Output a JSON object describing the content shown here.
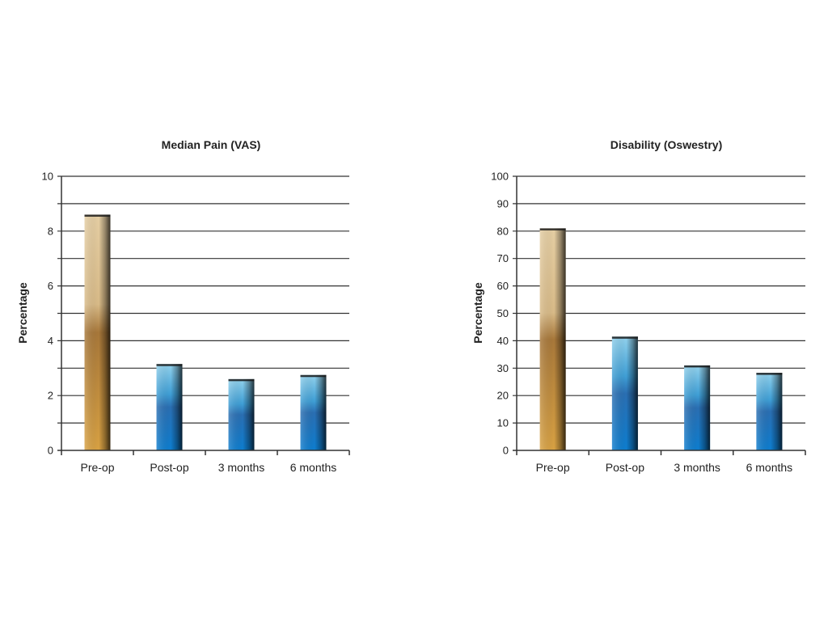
{
  "chart_data": [
    {
      "type": "bar",
      "title": "Median Pain (VAS)",
      "ylabel": "Percentage",
      "categories": [
        "Pre-op",
        "Post-op",
        "3 months",
        "6 months"
      ],
      "values": [
        8.6,
        3.15,
        2.6,
        2.75
      ],
      "ylim": [
        0,
        10
      ],
      "yticks": [
        0,
        2,
        4,
        6,
        8,
        10
      ],
      "minor_step": 1,
      "grid": true,
      "bar_colors": [
        "gold",
        "blue",
        "blue",
        "blue"
      ]
    },
    {
      "type": "bar",
      "title": "Disability (Oswestry)",
      "ylabel": "Percentage",
      "categories": [
        "Pre-op",
        "Post-op",
        "3 months",
        "6 months"
      ],
      "values": [
        81,
        41.5,
        31,
        28.3
      ],
      "ylim": [
        0,
        100
      ],
      "yticks": [
        0,
        10,
        20,
        30,
        40,
        50,
        60,
        70,
        80,
        90,
        100
      ],
      "minor_step": 10,
      "grid": true,
      "bar_colors": [
        "gold",
        "blue",
        "blue",
        "blue"
      ]
    }
  ],
  "colors": {
    "gold_top": "#e3cba0",
    "gold_mid": "#a67a3c",
    "gold_bottom": "#d6a040",
    "blue_top": "#8fd0ec",
    "blue_mid": "#2b74b8",
    "blue_bottom": "#0a7acc"
  }
}
